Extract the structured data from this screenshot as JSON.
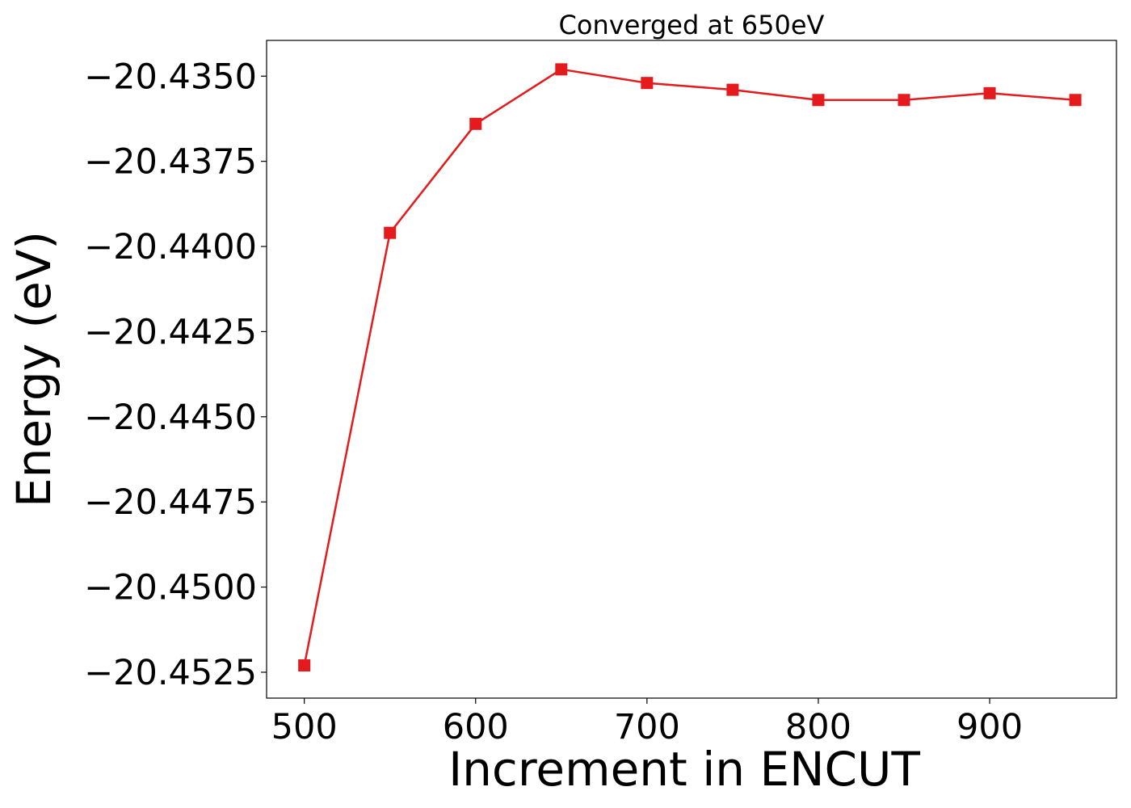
{
  "chart_data": {
    "type": "line",
    "title": "Converged at 650eV",
    "xlabel": "Increment in ENCUT",
    "ylabel": "Energy (eV)",
    "x": [
      500,
      550,
      600,
      650,
      700,
      750,
      800,
      850,
      900,
      950
    ],
    "series": [
      {
        "values": [
          -20.4523,
          -20.4396,
          -20.4364,
          -20.4348,
          -20.4352,
          -20.4354,
          -20.4357,
          -20.4357,
          -20.4355,
          -20.4357
        ],
        "color": "#e41a1c",
        "marker": "square"
      }
    ],
    "xlim": [
      478,
      974
    ],
    "ylim": [
      -20.45326,
      -20.43395
    ],
    "xticks": [
      500,
      600,
      700,
      800,
      900
    ],
    "xtick_labels": [
      "500",
      "600",
      "700",
      "800",
      "900"
    ],
    "yticks": [
      -20.435,
      -20.4375,
      -20.44,
      -20.4425,
      -20.445,
      -20.4475,
      -20.45,
      -20.4525
    ],
    "ytick_labels": [
      "−20.4350",
      "−20.4375",
      "−20.4400",
      "−20.4425",
      "−20.4450",
      "−20.4475",
      "−20.4500",
      "−20.4525"
    ],
    "grid": false,
    "legend": "none"
  }
}
